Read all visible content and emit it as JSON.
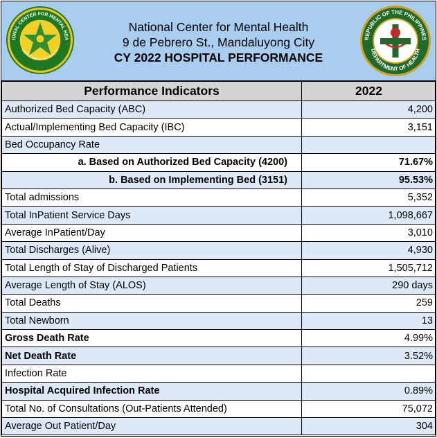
{
  "header": {
    "line1": "National Center for Mental Health",
    "line2": "9 de Pebrero St., Mandaluyong City",
    "line3": "CY 2022  HOSPITAL PERFORMANCE",
    "logo_left": {
      "name": "ncmh-seal",
      "text_top": "NATIONAL CENTER FOR MENTAL HEALTH",
      "text_bottom": "DEPARTMENT OF HEALTH",
      "colors": {
        "ring": "#1e7a22",
        "outer": "#f2c318",
        "inner": "#f5d024"
      }
    },
    "logo_right": {
      "name": "doh-seal",
      "text_top": "REPUBLIC OF THE PHILIPPINES",
      "text_bottom": "DEPARTMENT OF HEALTH",
      "colors": {
        "ring": "#1f6b2a",
        "outer": "#d3a11c",
        "center": "#ffffff",
        "accent": "#c62828"
      }
    }
  },
  "table": {
    "col_indicator": "Performance Indicators",
    "col_year": "2022",
    "rows": [
      {
        "label": "Authorized  Bed Capacity (ABC)",
        "value": "4,200"
      },
      {
        "label": "Actual/Implementing Bed Capacity (IBC)",
        "value": "3,151"
      },
      {
        "label": "Bed Occupancy Rate",
        "value": ""
      },
      {
        "label": "a. Based on Authorized Bed Capacity (4200)",
        "value": "71.67%"
      },
      {
        "label": "b. Based on Implementing Bed (3151)",
        "value": "95.53%"
      },
      {
        "label": "Total admissions",
        "value": "5,352"
      },
      {
        "label": "Total InPatient Service Days",
        "value": "1,098,667"
      },
      {
        "label": "Average InPatient/Day",
        "value": "3,010"
      },
      {
        "label": "Total Discharges (Alive)",
        "value": "4,930"
      },
      {
        "label": "Total Length of Stay of Discharged Patients",
        "value": "1,505,712"
      },
      {
        "label": "Average Length of Stay (ALOS)",
        "value": "290 days"
      },
      {
        "label": "Total Deaths",
        "value": "259"
      },
      {
        "label": "Total Newborn",
        "value": "13"
      },
      {
        "label": "Gross Death Rate",
        "value": "4.99%"
      },
      {
        "label": "Net Death Rate",
        "value": "3.52%"
      },
      {
        "label": "Infection Rate",
        "value": ""
      },
      {
        "label": "Hospital  Acquired Infection Rate",
        "value": "0.89%"
      },
      {
        "label": "Total No. of Consultations (Out-Patients Attended)",
        "value": "75,072"
      },
      {
        "label": "Average Out Patient/Day",
        "value": "304"
      }
    ]
  },
  "colors": {
    "header_bg": "#a9cdee",
    "row_blue": "#dde9f6",
    "row_head": "#d4d4d4"
  }
}
